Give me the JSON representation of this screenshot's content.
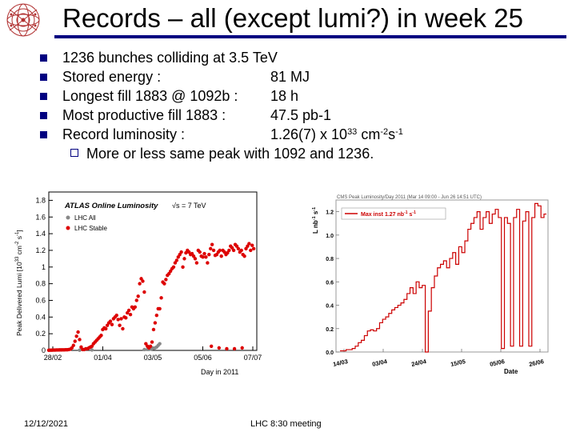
{
  "slide": {
    "title": "Records – all (except lumi?) in week 25",
    "bullets": [
      {
        "text": "1236 bunches colliding at 3.5 TeV",
        "value": ""
      },
      {
        "text": "Stored energy :",
        "value": "81 MJ"
      },
      {
        "text": "Longest fill 1883 @ 1092b :",
        "value": "18 h"
      },
      {
        "text": "Most productive fill 1883 :",
        "value": "47.5 pb-1"
      }
    ],
    "record": {
      "text": "Record luminosity :",
      "v1": "1.26(7) x 10",
      "e1": "33",
      "v2": " cm",
      "e2": "-2",
      "v3": "s",
      "e3": "-1"
    },
    "sub_bullet": "More or less same peak with 1092 and 1236.",
    "footer_date": "12/12/2021",
    "footer_center": "LHC 8:30 meeting"
  },
  "chart_data": [
    {
      "type": "scatter",
      "title": "ATLAS Online Luminosity",
      "energy_label": "√s = 7 TeV",
      "ylabel": "Peak Delivered Lumi [10",
      "ylabel_exp": "33",
      "ylabel_unit": " cm",
      "ylabel_unit_exp": "-2",
      "ylabel_unit2": " s",
      "ylabel_unit2_exp": "-1",
      "ylabel_end": "]",
      "xlabel": "Day in 2011",
      "ylim": [
        0,
        1.9
      ],
      "yticks": [
        "0",
        "0.2",
        "0.4",
        "0.6",
        "0.8",
        "1",
        "1.2",
        "1.4",
        "1.6",
        "1.8"
      ],
      "xticks": [
        "28/02",
        "01/04",
        "03/05",
        "05/06",
        "07/07"
      ],
      "legend_position": "top-left",
      "series": [
        {
          "name": "LHC All",
          "color": "#888888",
          "points": [
            [
              20,
              0.003
            ],
            [
              28,
              0.005
            ],
            [
              62,
              0.01
            ],
            [
              64,
              0.012
            ],
            [
              65,
              0.012
            ],
            [
              66,
              0.015
            ],
            [
              67,
              0.02
            ],
            [
              68,
              0.025
            ],
            [
              69,
              0.03
            ],
            [
              70,
              0.04
            ],
            [
              71,
              0.06
            ],
            [
              72,
              0.08
            ]
          ]
        },
        {
          "name": "LHC Stable",
          "color": "#dd0000",
          "points": [
            [
              0,
              0.002
            ],
            [
              1,
              0.003
            ],
            [
              2,
              0.003
            ],
            [
              3,
              0.004
            ],
            [
              4,
              0.004
            ],
            [
              5,
              0.005
            ],
            [
              6,
              0.005
            ],
            [
              7,
              0.006
            ],
            [
              8,
              0.006
            ],
            [
              9,
              0.007
            ],
            [
              10,
              0.007
            ],
            [
              11,
              0.008
            ],
            [
              12,
              0.008
            ],
            [
              13,
              0.01
            ],
            [
              14,
              0.015
            ],
            [
              15,
              0.03
            ],
            [
              16,
              0.06
            ],
            [
              17,
              0.11
            ],
            [
              18,
              0.17
            ],
            [
              19,
              0.22
            ],
            [
              20,
              0.13
            ],
            [
              21,
              0.04
            ],
            [
              22,
              0.01
            ],
            [
              23,
              0.01
            ],
            [
              24,
              0.02
            ],
            [
              25,
              0.02
            ],
            [
              26,
              0.03
            ],
            [
              27,
              0.04
            ],
            [
              28,
              0.05
            ],
            [
              29,
              0.08
            ],
            [
              30,
              0.1
            ],
            [
              31,
              0.12
            ],
            [
              32,
              0.14
            ],
            [
              33,
              0.16
            ],
            [
              34,
              0.18
            ],
            [
              35,
              0.25
            ],
            [
              36,
              0.27
            ],
            [
              37,
              0.26
            ],
            [
              38,
              0.3
            ],
            [
              39,
              0.33
            ],
            [
              40,
              0.35
            ],
            [
              41,
              0.31
            ],
            [
              42,
              0.38
            ],
            [
              43,
              0.4
            ],
            [
              44,
              0.42
            ],
            [
              45,
              0.37
            ],
            [
              46,
              0.3
            ],
            [
              47,
              0.38
            ],
            [
              48,
              0.26
            ],
            [
              49,
              0.4
            ],
            [
              50,
              0.39
            ],
            [
              51,
              0.45
            ],
            [
              52,
              0.48
            ],
            [
              53,
              0.43
            ],
            [
              54,
              0.52
            ],
            [
              55,
              0.5
            ],
            [
              56,
              0.52
            ],
            [
              57,
              0.6
            ],
            [
              58,
              0.65
            ],
            [
              59,
              0.8
            ],
            [
              60,
              0.86
            ],
            [
              61,
              0.83
            ],
            [
              62,
              0.7
            ],
            [
              63,
              0.08
            ],
            [
              64,
              0.05
            ],
            [
              65,
              0.03
            ],
            [
              66,
              0.05
            ],
            [
              67,
              0.1
            ],
            [
              68,
              0.25
            ],
            [
              69,
              0.33
            ],
            [
              70,
              0.42
            ],
            [
              71,
              0.5
            ],
            [
              72,
              0.5
            ],
            [
              73,
              0.63
            ],
            [
              74,
              0.82
            ],
            [
              75,
              0.8
            ],
            [
              76,
              0.85
            ],
            [
              77,
              0.9
            ],
            [
              78,
              0.92
            ],
            [
              79,
              0.95
            ],
            [
              80,
              0.98
            ],
            [
              81,
              1.0
            ],
            [
              82,
              1.05
            ],
            [
              83,
              1.08
            ],
            [
              84,
              1.12
            ],
            [
              85,
              1.15
            ],
            [
              86,
              1.18
            ],
            [
              87,
              1.0
            ],
            [
              88,
              1.1
            ],
            [
              89,
              1.17
            ],
            [
              90,
              1.2
            ],
            [
              91,
              1.18
            ],
            [
              92,
              1.15
            ],
            [
              93,
              1.16
            ],
            [
              94,
              1.13
            ],
            [
              95,
              1.1
            ],
            [
              96,
              1.05
            ],
            [
              97,
              1.2
            ],
            [
              98,
              1.18
            ],
            [
              99,
              1.13
            ],
            [
              100,
              1.12
            ],
            [
              101,
              1.16
            ],
            [
              102,
              1.12
            ],
            [
              103,
              1.05
            ],
            [
              104,
              1.15
            ],
            [
              105,
              1.22
            ],
            [
              106,
              1.27
            ],
            [
              107,
              1.2
            ],
            [
              108,
              1.14
            ],
            [
              109,
              1.15
            ],
            [
              110,
              1.18
            ],
            [
              111,
              1.2
            ],
            [
              112,
              1.13
            ],
            [
              113,
              1.2
            ],
            [
              114,
              1.18
            ],
            [
              115,
              1.15
            ],
            [
              116,
              1.17
            ],
            [
              117,
              1.2
            ],
            [
              118,
              1.25
            ],
            [
              119,
              1.23
            ],
            [
              120,
              1.2
            ],
            [
              121,
              1.27
            ],
            [
              122,
              1.25
            ],
            [
              123,
              1.22
            ],
            [
              124,
              1.18
            ],
            [
              125,
              1.2
            ],
            [
              126,
              1.15
            ],
            [
              127,
              1.13
            ],
            [
              128,
              1.22
            ],
            [
              129,
              1.25
            ],
            [
              130,
              1.28
            ],
            [
              131,
              1.2
            ],
            [
              132,
              1.26
            ],
            [
              133,
              1.22
            ],
            [
              105.5,
              0.05
            ],
            [
              110.5,
              0.03
            ],
            [
              115.5,
              0.02
            ],
            [
              120.5,
              0.02
            ],
            [
              125.5,
              0.03
            ]
          ]
        }
      ]
    },
    {
      "type": "line",
      "title": "CMS Peak Luminosity/Day 2011 (Mar 14 09:00 - Jun 26 14:51 UTC)",
      "ylabel": "L nb",
      "ylabel_exp": "-1",
      "ylabel_unit": " s",
      "ylabel_unit_exp": "-1",
      "xlabel": "Date",
      "ylim": [
        0,
        1.3
      ],
      "yticks": [
        "0.0",
        "0.2",
        "0.4",
        "0.6",
        "0.8",
        "1.0",
        "1.2"
      ],
      "xticks": [
        "14/03",
        "03/04",
        "24/04",
        "15/05",
        "05/06",
        "26/06"
      ],
      "legend": "Max inst 1.27 nb",
      "legend_exp": "-1",
      "legend_unit": "s",
      "legend_unit_exp": "-1",
      "color": "#cc0000",
      "points": [
        [
          0,
          0.01
        ],
        [
          1,
          0.01
        ],
        [
          2,
          0.02
        ],
        [
          3,
          0.02
        ],
        [
          4,
          0.03
        ],
        [
          5,
          0.05
        ],
        [
          6,
          0.08
        ],
        [
          7,
          0.1
        ],
        [
          8,
          0.14
        ],
        [
          9,
          0.18
        ],
        [
          10,
          0.19
        ],
        [
          11,
          0.18
        ],
        [
          12,
          0.2
        ],
        [
          13,
          0.25
        ],
        [
          14,
          0.28
        ],
        [
          15,
          0.3
        ],
        [
          16,
          0.33
        ],
        [
          17,
          0.36
        ],
        [
          18,
          0.38
        ],
        [
          19,
          0.4
        ],
        [
          20,
          0.42
        ],
        [
          21,
          0.45
        ],
        [
          22,
          0.5
        ],
        [
          23,
          0.55
        ],
        [
          24,
          0.5
        ],
        [
          25,
          0.6
        ],
        [
          26,
          0.55
        ],
        [
          27,
          0.57
        ],
        [
          28,
          0.0
        ],
        [
          29,
          0.35
        ],
        [
          30,
          0.55
        ],
        [
          31,
          0.65
        ],
        [
          32,
          0.72
        ],
        [
          33,
          0.75
        ],
        [
          34,
          0.78
        ],
        [
          35,
          0.72
        ],
        [
          36,
          0.8
        ],
        [
          37,
          0.85
        ],
        [
          38,
          0.75
        ],
        [
          39,
          0.9
        ],
        [
          40,
          0.85
        ],
        [
          41,
          0.95
        ],
        [
          42,
          1.05
        ],
        [
          43,
          1.1
        ],
        [
          44,
          1.15
        ],
        [
          45,
          1.2
        ],
        [
          46,
          1.05
        ],
        [
          47,
          1.15
        ],
        [
          48,
          1.2
        ],
        [
          49,
          1.1
        ],
        [
          50,
          1.18
        ],
        [
          51,
          1.22
        ],
        [
          52,
          1.15
        ],
        [
          53,
          0.03
        ],
        [
          54,
          1.15
        ],
        [
          55,
          1.1
        ],
        [
          56,
          0.05
        ],
        [
          57,
          1.15
        ],
        [
          58,
          1.22
        ],
        [
          59,
          0.05
        ],
        [
          60,
          1.12
        ],
        [
          61,
          1.2
        ],
        [
          62,
          0.05
        ],
        [
          63,
          1.15
        ],
        [
          64,
          1.27
        ],
        [
          65,
          1.25
        ],
        [
          66,
          1.15
        ],
        [
          67,
          1.18
        ]
      ]
    }
  ]
}
